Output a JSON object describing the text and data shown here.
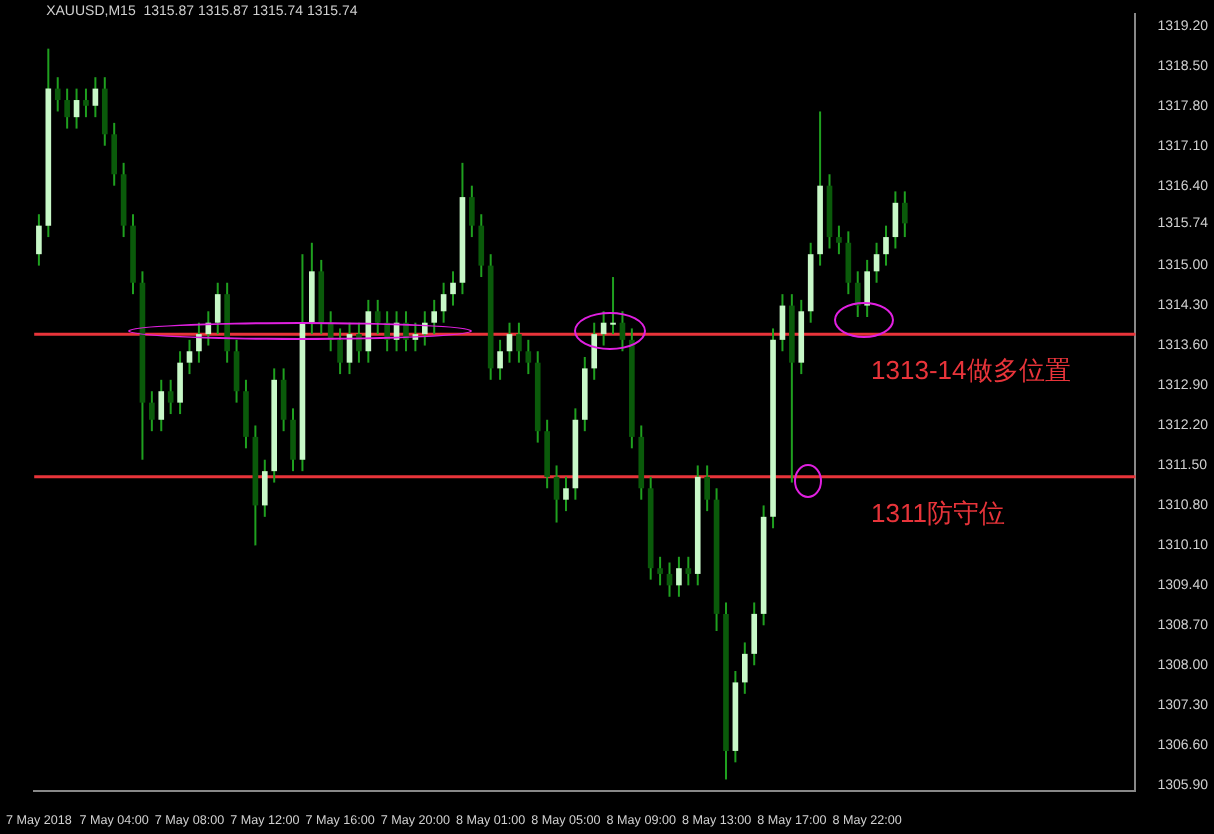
{
  "chart_data": {
    "type": "candlestick",
    "title": "XAUUSD,M15  1315.87 1315.87 1315.74 1315.74",
    "categories": [
      "7 May 2018",
      null,
      null,
      null,
      null,
      null,
      null,
      null,
      "7 May 04:00",
      null,
      null,
      null,
      null,
      null,
      null,
      null,
      "7 May 08:00",
      null,
      null,
      null,
      null,
      null,
      null,
      null,
      "7 May 12:00",
      null,
      null,
      null,
      null,
      null,
      null,
      null,
      "7 May 16:00",
      null,
      null,
      null,
      null,
      null,
      null,
      null,
      "7 May 20:00",
      null,
      null,
      null,
      null,
      null,
      null,
      null,
      "8 May 01:00",
      null,
      null,
      null,
      null,
      null,
      null,
      null,
      "8 May 05:00",
      null,
      null,
      null,
      null,
      null,
      null,
      null,
      "8 May 09:00",
      null,
      null,
      null,
      null,
      null,
      null,
      null,
      "8 May 13:00",
      null,
      null,
      null,
      null,
      null,
      null,
      null,
      "8 May 17:00",
      null,
      null,
      null,
      null,
      null,
      null,
      null,
      "8 May 22:00",
      null,
      null,
      null,
      null,
      null,
      null,
      null,
      null,
      null,
      null,
      null,
      null,
      null,
      null,
      null,
      null,
      null,
      null,
      null,
      null,
      null,
      null,
      null,
      null,
      null,
      null,
      null,
      null
    ],
    "ohlc": [
      [
        1315.2,
        1315.9,
        1315.0,
        1315.7
      ],
      [
        1315.7,
        1318.8,
        1315.5,
        1318.1
      ],
      [
        1318.1,
        1318.3,
        1317.7,
        1317.9
      ],
      [
        1317.9,
        1318.1,
        1317.4,
        1317.6
      ],
      [
        1317.6,
        1318.1,
        1317.4,
        1317.9
      ],
      [
        1317.9,
        1318.1,
        1317.6,
        1317.8
      ],
      [
        1317.8,
        1318.3,
        1317.6,
        1318.1
      ],
      [
        1318.1,
        1318.3,
        1317.1,
        1317.3
      ],
      [
        1317.3,
        1317.5,
        1316.4,
        1316.6
      ],
      [
        1316.6,
        1316.8,
        1315.5,
        1315.7
      ],
      [
        1315.7,
        1315.9,
        1314.5,
        1314.7
      ],
      [
        1314.7,
        1314.9,
        1311.6,
        1312.6
      ],
      [
        1312.6,
        1312.8,
        1312.1,
        1312.3
      ],
      [
        1312.3,
        1313.0,
        1312.1,
        1312.8
      ],
      [
        1312.8,
        1313.0,
        1312.4,
        1312.6
      ],
      [
        1312.6,
        1313.5,
        1312.4,
        1313.3
      ],
      [
        1313.3,
        1313.7,
        1313.1,
        1313.5
      ],
      [
        1313.5,
        1314.0,
        1313.3,
        1313.8
      ],
      [
        1313.8,
        1314.2,
        1313.6,
        1314.0
      ],
      [
        1314.0,
        1314.7,
        1313.8,
        1314.5
      ],
      [
        1314.5,
        1314.7,
        1313.3,
        1313.5
      ],
      [
        1313.5,
        1313.7,
        1312.6,
        1312.8
      ],
      [
        1312.8,
        1313.0,
        1311.8,
        1312.0
      ],
      [
        1312.0,
        1312.2,
        1310.1,
        1310.8
      ],
      [
        1310.8,
        1311.6,
        1310.6,
        1311.4
      ],
      [
        1311.4,
        1313.2,
        1311.2,
        1313.0
      ],
      [
        1313.0,
        1313.2,
        1312.1,
        1312.3
      ],
      [
        1312.3,
        1312.5,
        1311.4,
        1311.6
      ],
      [
        1311.6,
        1315.2,
        1311.4,
        1314.0
      ],
      [
        1314.0,
        1315.4,
        1313.8,
        1314.9
      ],
      [
        1314.9,
        1315.1,
        1313.8,
        1314.0
      ],
      [
        1314.0,
        1314.2,
        1313.5,
        1313.7
      ],
      [
        1313.7,
        1313.9,
        1313.1,
        1313.3
      ],
      [
        1313.3,
        1314.0,
        1313.1,
        1313.8
      ],
      [
        1313.8,
        1314.0,
        1313.3,
        1313.5
      ],
      [
        1313.5,
        1314.4,
        1313.3,
        1314.2
      ],
      [
        1314.2,
        1314.4,
        1313.8,
        1314.0
      ],
      [
        1314.0,
        1314.2,
        1313.5,
        1313.7
      ],
      [
        1313.7,
        1314.2,
        1313.5,
        1314.0
      ],
      [
        1314.0,
        1314.2,
        1313.5,
        1313.7
      ],
      [
        1313.7,
        1314.0,
        1313.5,
        1313.8
      ],
      [
        1313.8,
        1314.2,
        1313.6,
        1314.0
      ],
      [
        1314.0,
        1314.4,
        1313.8,
        1314.2
      ],
      [
        1314.2,
        1314.7,
        1314.0,
        1314.5
      ],
      [
        1314.5,
        1314.9,
        1314.3,
        1314.7
      ],
      [
        1314.7,
        1316.8,
        1314.5,
        1316.2
      ],
      [
        1316.2,
        1316.4,
        1315.5,
        1315.7
      ],
      [
        1315.7,
        1315.9,
        1314.8,
        1315.0
      ],
      [
        1315.0,
        1315.2,
        1313.0,
        1313.2
      ],
      [
        1313.2,
        1313.7,
        1313.0,
        1313.5
      ],
      [
        1313.5,
        1314.0,
        1313.3,
        1313.8
      ],
      [
        1313.8,
        1314.0,
        1313.3,
        1313.5
      ],
      [
        1313.5,
        1313.7,
        1313.1,
        1313.3
      ],
      [
        1313.3,
        1313.5,
        1311.9,
        1312.1
      ],
      [
        1312.1,
        1312.3,
        1311.1,
        1311.3
      ],
      [
        1311.3,
        1311.5,
        1310.5,
        1310.9
      ],
      [
        1310.9,
        1311.3,
        1310.7,
        1311.1
      ],
      [
        1311.1,
        1312.5,
        1310.9,
        1312.3
      ],
      [
        1312.3,
        1313.4,
        1312.1,
        1313.2
      ],
      [
        1313.2,
        1314.0,
        1313.0,
        1313.8
      ],
      [
        1313.8,
        1314.2,
        1313.6,
        1314.0
      ],
      [
        1314.0,
        1314.8,
        1313.8,
        1314.0
      ],
      [
        1314.0,
        1314.2,
        1313.5,
        1313.7
      ],
      [
        1313.7,
        1313.9,
        1311.8,
        1312.0
      ],
      [
        1312.0,
        1312.2,
        1310.9,
        1311.1
      ],
      [
        1311.1,
        1311.3,
        1309.5,
        1309.7
      ],
      [
        1309.7,
        1309.9,
        1309.4,
        1309.6
      ],
      [
        1309.6,
        1309.8,
        1309.2,
        1309.4
      ],
      [
        1309.4,
        1309.9,
        1309.2,
        1309.7
      ],
      [
        1309.7,
        1309.9,
        1309.4,
        1309.6
      ],
      [
        1309.6,
        1311.5,
        1309.4,
        1311.3
      ],
      [
        1311.3,
        1311.5,
        1310.7,
        1310.9
      ],
      [
        1310.9,
        1311.1,
        1308.6,
        1308.9
      ],
      [
        1308.9,
        1309.1,
        1306.0,
        1306.5
      ],
      [
        1306.5,
        1307.9,
        1306.3,
        1307.7
      ],
      [
        1307.7,
        1308.4,
        1307.5,
        1308.2
      ],
      [
        1308.2,
        1309.1,
        1308.0,
        1308.9
      ],
      [
        1308.9,
        1310.8,
        1308.7,
        1310.6
      ],
      [
        1310.6,
        1313.9,
        1310.4,
        1313.7
      ],
      [
        1313.7,
        1314.5,
        1313.5,
        1314.3
      ],
      [
        1314.3,
        1314.5,
        1311.2,
        1313.3
      ],
      [
        1313.3,
        1314.4,
        1313.1,
        1314.2
      ],
      [
        1314.2,
        1315.4,
        1314.0,
        1315.2
      ],
      [
        1315.2,
        1317.7,
        1315.0,
        1316.4
      ],
      [
        1316.4,
        1316.6,
        1315.3,
        1315.5
      ],
      [
        1315.5,
        1315.7,
        1315.2,
        1315.4
      ],
      [
        1315.4,
        1315.6,
        1314.5,
        1314.7
      ],
      [
        1314.7,
        1314.9,
        1314.1,
        1314.3
      ],
      [
        1314.3,
        1315.1,
        1314.1,
        1314.9
      ],
      [
        1314.9,
        1315.4,
        1314.7,
        1315.2
      ],
      [
        1315.2,
        1315.7,
        1315.0,
        1315.5
      ],
      [
        1315.5,
        1316.3,
        1315.3,
        1316.1
      ],
      [
        1316.1,
        1316.3,
        1315.5,
        1315.74
      ],
      null,
      null,
      null,
      null,
      null,
      null,
      null,
      null,
      null,
      null,
      null,
      null,
      null,
      null,
      null,
      null,
      null,
      null,
      null,
      null,
      null,
      null,
      null,
      null
    ],
    "color": "#1fa01f",
    "colors": [
      "#c8f8c8",
      "#c8f8c8",
      "#0a5a0a",
      "#0a5a0a",
      "#c8f8c8",
      "#0a5a0a",
      "#c8f8c8",
      "#0a5a0a",
      "#0a5a0a",
      "#0a5a0a",
      "#0a5a0a",
      "#0a5a0a",
      "#0a5a0a",
      "#c8f8c8",
      "#0a5a0a",
      "#c8f8c8",
      "#c8f8c8",
      "#c8f8c8",
      "#c8f8c8",
      "#c8f8c8",
      "#0a5a0a",
      "#0a5a0a",
      "#0a5a0a",
      "#0a5a0a",
      "#c8f8c8",
      "#c8f8c8",
      "#0a5a0a",
      "#0a5a0a",
      "#c8f8c8",
      "#c8f8c8",
      "#0a5a0a",
      "#0a5a0a",
      "#0a5a0a",
      "#c8f8c8",
      "#0a5a0a",
      "#c8f8c8",
      "#0a5a0a",
      "#0a5a0a",
      "#c8f8c8",
      "#0a5a0a",
      "#c8f8c8",
      "#c8f8c8",
      "#c8f8c8",
      "#c8f8c8",
      "#c8f8c8",
      "#c8f8c8",
      "#0a5a0a",
      "#0a5a0a",
      "#0a5a0a",
      "#c8f8c8",
      "#c8f8c8",
      "#0a5a0a",
      "#0a5a0a",
      "#0a5a0a",
      "#0a5a0a",
      "#0a5a0a",
      "#c8f8c8",
      "#c8f8c8",
      "#c8f8c8",
      "#c8f8c8",
      "#c8f8c8",
      "#c8f8c8",
      "#0a5a0a",
      "#0a5a0a",
      "#0a5a0a",
      "#0a5a0a",
      "#0a5a0a",
      "#0a5a0a",
      "#c8f8c8",
      "#0a5a0a",
      "#c8f8c8",
      "#0a5a0a",
      "#0a5a0a",
      "#0a5a0a",
      "#c8f8c8",
      "#c8f8c8",
      "#c8f8c8",
      "#c8f8c8",
      "#c8f8c8",
      "#c8f8c8",
      "#0a5a0a",
      "#c8f8c8",
      "#c8f8c8",
      "#c8f8c8",
      "#0a5a0a",
      "#0a5a0a",
      "#0a5a0a",
      "#0a5a0a",
      "#c8f8c8",
      "#c8f8c8",
      "#c8f8c8",
      "#c8f8c8",
      "#0a5a0a",
      null,
      null,
      null,
      null,
      null,
      null,
      null,
      null,
      null,
      null,
      null,
      null,
      null,
      null,
      null,
      null,
      null,
      null,
      null,
      null,
      null,
      null,
      null,
      null
    ],
    "ylim": [
      1305.8,
      1319.4
    ],
    "yticks": [
      {
        "value": 1305.9,
        "label": "1305.90"
      },
      {
        "value": 1306.6,
        "label": "1306.60"
      },
      {
        "value": 1307.3,
        "label": "1307.30"
      },
      {
        "value": 1308,
        "label": "1308.00"
      },
      {
        "value": 1308.7,
        "label": "1308.70"
      },
      {
        "value": 1309.4,
        "label": "1309.40"
      },
      {
        "value": 1310.1,
        "label": "1310.10"
      },
      {
        "value": 1310.8,
        "label": "1310.80"
      },
      {
        "value": 1311.5,
        "label": "1311.50"
      },
      {
        "value": 1312.2,
        "label": "1312.20"
      },
      {
        "value": 1312.9,
        "label": "1312.90"
      },
      {
        "value": 1313.6,
        "label": "1313.60"
      },
      {
        "value": 1314.3,
        "label": "1314.30"
      },
      {
        "value": 1315,
        "label": "1315.00"
      },
      1315.74,
      {
        "value": 1316.4,
        "label": "1316.40"
      },
      {
        "value": 1317.1,
        "label": "1317.10"
      },
      {
        "value": 1317.8,
        "label": "1317.80"
      },
      {
        "value": 1318.5,
        "label": "1318.50"
      },
      {
        "value": 1319.2,
        "label": "1319.20"
      }
    ],
    "ref_lines": [
      {
        "axis": "y",
        "value": 1313.8,
        "label": "1313-14做多位置",
        "color": "#e8343a"
      },
      {
        "axis": "y",
        "value": 1311.3,
        "label": "1311防守位",
        "color": "#e8343a"
      }
    ],
    "grid": false,
    "legend": false
  }
}
